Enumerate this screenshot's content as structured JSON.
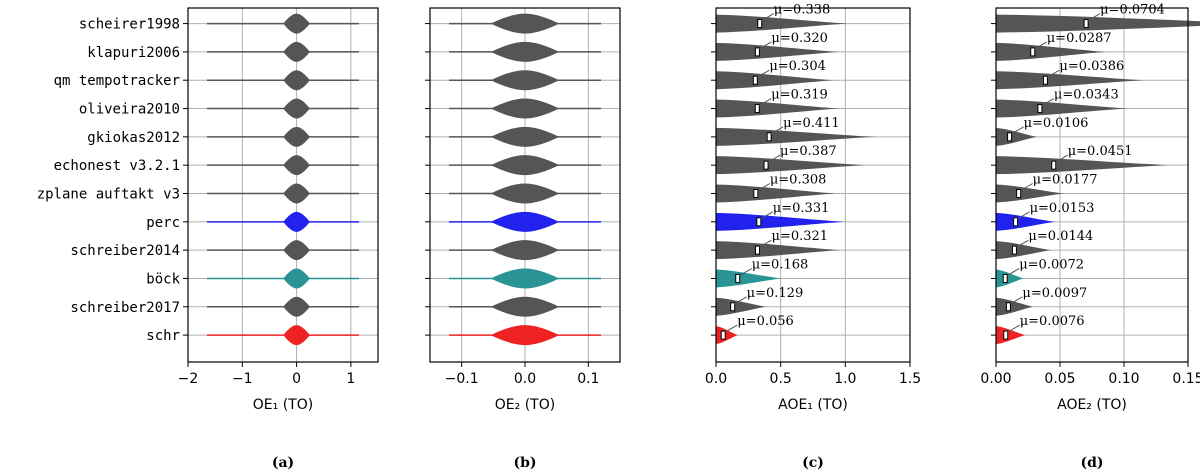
{
  "chart_data": [
    {
      "type": "violin",
      "categories": [
        "scheirer1998",
        "klapuri2006",
        "qm tempotracker",
        "oliveira2010",
        "gkiokas2012",
        "echonest v3.2.1",
        "zplane auftakt v3",
        "perc",
        "schreiber2014",
        "böck",
        "schreiber2017",
        "schr"
      ],
      "colors": [
        "#555555",
        "#555555",
        "#555555",
        "#555555",
        "#555555",
        "#555555",
        "#555555",
        "#2222ee",
        "#555555",
        "#2a9494",
        "#555555",
        "#ee2222"
      ],
      "xlabel": "OE₁ (TO)",
      "caption": "(a)",
      "xlim": [
        -2,
        1.5
      ],
      "xticks": [
        {
          "value": -2,
          "label": "−2"
        },
        {
          "value": -1,
          "label": "−1"
        },
        0,
        1
      ],
      "grid": true
    },
    {
      "type": "violin",
      "xlabel": "OE₂ (TO)",
      "caption": "(b)",
      "xlim": [
        -0.15,
        0.15
      ],
      "xticks": [
        {
          "value": -0.1,
          "label": "−0.1"
        },
        {
          "value": 0,
          "label": "0.0"
        },
        0.1
      ],
      "grid": true
    },
    {
      "type": "violin",
      "xlabel": "AOE₁ (TO)",
      "caption": "(c)",
      "xlim": [
        0,
        1.5
      ],
      "xticks": [
        {
          "value": 0,
          "label": "0.0"
        },
        0.5,
        {
          "value": 1,
          "label": "1.0"
        },
        1.5
      ],
      "grid": true,
      "values": [
        0.338,
        0.32,
        0.304,
        0.319,
        0.411,
        0.387,
        0.308,
        0.331,
        0.321,
        0.168,
        0.129,
        0.056
      ],
      "value_labels": [
        "μ=0.338",
        "μ=0.320",
        "μ=0.304",
        "μ=0.319",
        "μ=0.411",
        "μ=0.387",
        "μ=0.308",
        "μ=0.331",
        "μ=0.321",
        "μ=0.168",
        "μ=0.129",
        "μ=0.056"
      ]
    },
    {
      "type": "violin",
      "xlabel": "AOE₂ (TO)",
      "caption": "(d)",
      "xlim": [
        0,
        0.15
      ],
      "xticks": [
        {
          "value": 0,
          "label": "0.00"
        },
        {
          "value": 0.05,
          "label": "0.05"
        },
        {
          "value": 0.1,
          "label": "0.10"
        },
        {
          "value": 0.15,
          "label": "0.15"
        }
      ],
      "grid": true,
      "values": [
        0.0704,
        0.0287,
        0.0386,
        0.0343,
        0.0106,
        0.0451,
        0.0177,
        0.0153,
        0.0144,
        0.0072,
        0.0097,
        0.0076
      ],
      "value_labels": [
        "μ=0.0704",
        "μ=0.0287",
        "μ=0.0386",
        "μ=0.0343",
        "μ=0.0106",
        "μ=0.0451",
        "μ=0.0177",
        "μ=0.0153",
        "μ=0.0144",
        "μ=0.0072",
        "μ=0.0097",
        "μ=0.0076"
      ]
    }
  ]
}
